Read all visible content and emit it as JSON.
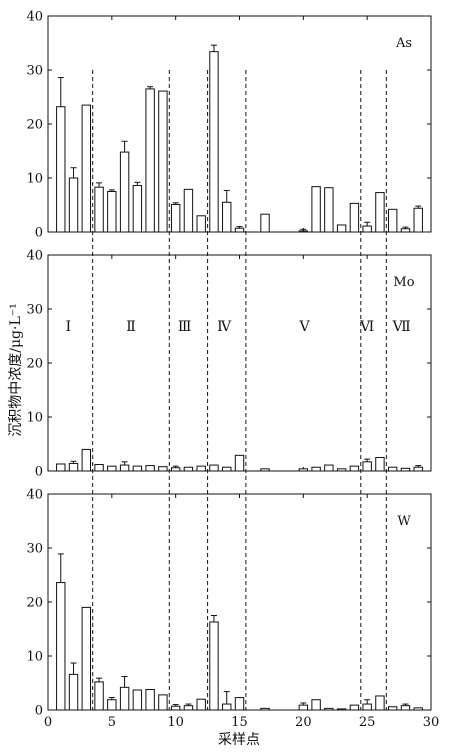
{
  "figure": {
    "ylabel": "沉积物中浓度/μg·L⁻¹",
    "xlabel": "采样点"
  },
  "chart_data": [
    {
      "type": "bar",
      "element": "As",
      "x": [
        1,
        2,
        3,
        4,
        5,
        6,
        7,
        8,
        9,
        10,
        11,
        12,
        13,
        14,
        15,
        16,
        17,
        18,
        19,
        20,
        21,
        22,
        23,
        24,
        25,
        26,
        27,
        28,
        29
      ],
      "values": [
        23.2,
        10.0,
        23.5,
        8.3,
        7.5,
        14.8,
        8.6,
        26.5,
        26.1,
        5.1,
        7.9,
        3.0,
        33.4,
        5.5,
        0.7,
        0,
        3.3,
        0,
        0,
        0.2,
        8.4,
        8.2,
        1.3,
        5.3,
        1.1,
        7.3,
        4.2,
        0.6,
        4.4
      ],
      "errors": [
        5.4,
        1.9,
        0,
        0.8,
        0.3,
        2.0,
        0.6,
        0.4,
        0,
        0.3,
        0,
        0,
        1.2,
        2.2,
        0.3,
        0,
        0,
        0,
        0,
        0.3,
        0,
        0,
        0,
        0,
        0.7,
        0,
        0,
        0.3,
        0.4
      ],
      "ylim": [
        0,
        40
      ],
      "yticks": [
        0,
        10,
        20,
        30,
        40
      ]
    },
    {
      "type": "bar",
      "element": "Mo",
      "x": [
        1,
        2,
        3,
        4,
        5,
        6,
        7,
        8,
        9,
        10,
        11,
        12,
        13,
        14,
        15,
        16,
        17,
        18,
        19,
        20,
        21,
        22,
        23,
        24,
        25,
        26,
        27,
        28,
        29
      ],
      "values": [
        1.3,
        1.4,
        4.0,
        1.2,
        0.9,
        1.1,
        0.9,
        1.0,
        0.8,
        0.6,
        0.7,
        0.9,
        1.1,
        0.7,
        2.9,
        0,
        0.4,
        0,
        0,
        0.4,
        0.7,
        1.1,
        0.4,
        0.9,
        1.7,
        2.5,
        0.7,
        0.5,
        0.7
      ],
      "errors": [
        0,
        0.4,
        0,
        0,
        0,
        0.6,
        0,
        0,
        0,
        0.3,
        0,
        0,
        0,
        0,
        0,
        0,
        0,
        0,
        0,
        0,
        0,
        0,
        0,
        0,
        0.5,
        0,
        0,
        0,
        0.3
      ],
      "ylim": [
        0,
        40
      ],
      "yticks": [
        0,
        10,
        20,
        30,
        40
      ]
    },
    {
      "type": "bar",
      "element": "W",
      "x": [
        1,
        2,
        3,
        4,
        5,
        6,
        7,
        8,
        9,
        10,
        11,
        12,
        13,
        14,
        15,
        16,
        17,
        18,
        19,
        20,
        21,
        22,
        23,
        24,
        25,
        26,
        27,
        28,
        29
      ],
      "values": [
        23.6,
        6.6,
        19.0,
        5.2,
        1.9,
        4.2,
        3.7,
        3.8,
        2.8,
        0.7,
        0.8,
        2.0,
        16.3,
        1.1,
        2.3,
        0,
        0.3,
        0,
        0,
        0.9,
        1.9,
        0.3,
        0.2,
        0.9,
        1.1,
        2.6,
        0.6,
        0.8,
        0.4
      ],
      "errors": [
        5.3,
        2.1,
        0,
        0.7,
        0.4,
        2.0,
        0,
        0,
        0,
        0.3,
        0.3,
        0,
        1.2,
        2.3,
        0,
        0,
        0,
        0,
        0,
        0.4,
        0,
        0,
        0,
        0,
        0.8,
        0,
        0,
        0.3,
        0
      ],
      "ylim": [
        0,
        40
      ],
      "yticks": [
        0,
        10,
        20,
        30,
        40
      ]
    }
  ],
  "zones": {
    "labels": [
      "Ⅰ",
      "Ⅱ",
      "Ⅲ",
      "Ⅳ",
      "Ⅴ",
      "Ⅵ",
      "Ⅶ"
    ],
    "label_x": [
      1.6,
      6.5,
      10.7,
      13.8,
      20.1,
      25.0,
      27.7
    ],
    "boundaries": [
      3.5,
      9.5,
      12.5,
      15.5,
      24.5,
      26.5
    ]
  },
  "xaxis": {
    "xlim": [
      0,
      30
    ],
    "ticks": [
      0,
      5,
      10,
      15,
      20,
      25,
      30
    ]
  }
}
